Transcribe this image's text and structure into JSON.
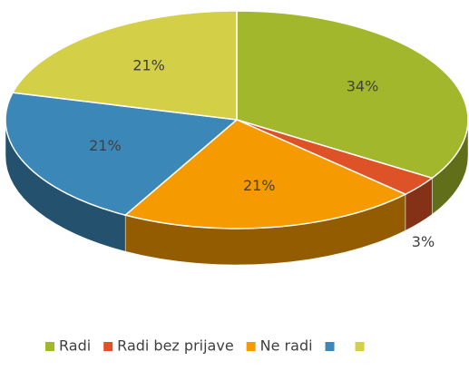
{
  "chart_data": {
    "type": "pie",
    "categories": [
      "Radi",
      "Radi bez prijave",
      "Ne radi",
      null,
      null
    ],
    "values": [
      34,
      3,
      21,
      21,
      21
    ],
    "value_labels": [
      "34%",
      "3%",
      "21%",
      "21%",
      "21%"
    ],
    "colors": [
      "#a2b72c",
      "#dd5226",
      "#f59a00",
      "#3b87b8",
      "#d3cf47"
    ],
    "legend": "bottom"
  }
}
